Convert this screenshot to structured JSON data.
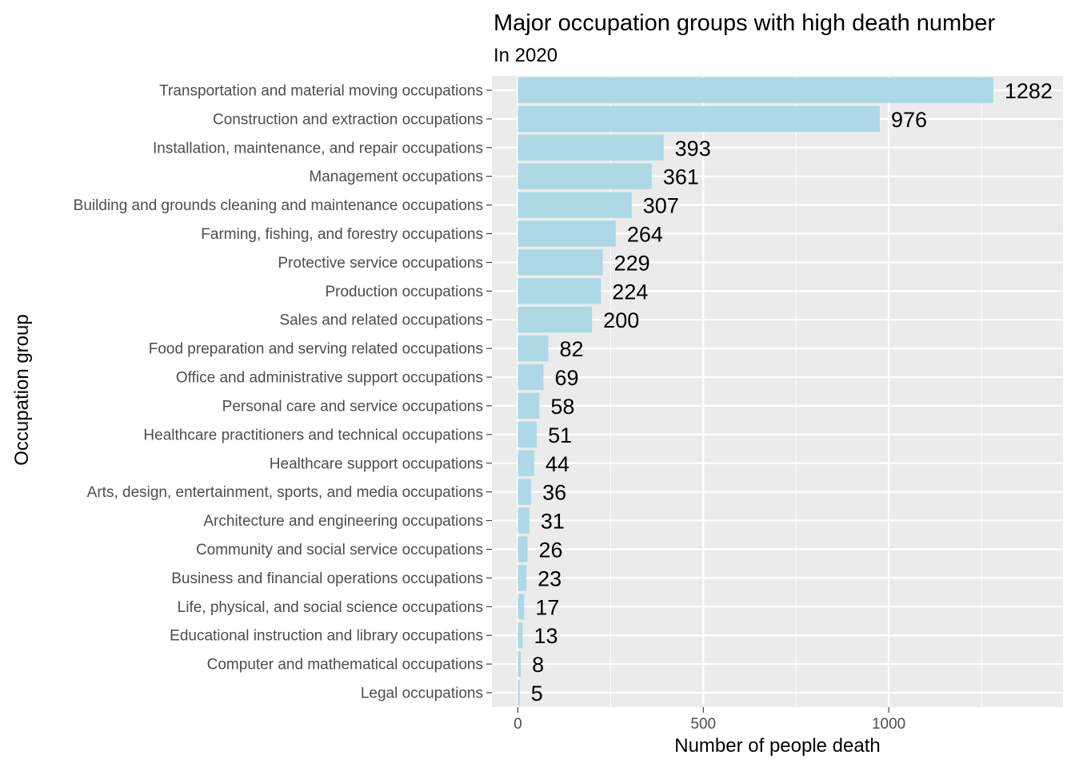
{
  "chart_data": {
    "type": "bar",
    "orientation": "horizontal",
    "title": "Major occupation groups with high death number",
    "subtitle": "In 2020",
    "xlabel": "Number of people death",
    "ylabel": "Occupation group",
    "xlim": [
      -70,
      1470
    ],
    "x_ticks": [
      0,
      500,
      1000
    ],
    "grid": true,
    "bar_color": "#add8e6",
    "panel_color": "#ebebeb",
    "categories": [
      "Transportation and material moving occupations",
      "Construction and extraction occupations",
      "Installation, maintenance, and repair occupations",
      "Management occupations",
      "Building and grounds cleaning and maintenance occupations",
      "Farming, fishing, and forestry occupations",
      "Protective service occupations",
      "Production occupations",
      "Sales and related occupations",
      "Food preparation and serving related occupations",
      "Office and administrative support occupations",
      "Personal care and service occupations",
      "Healthcare practitioners and technical occupations",
      "Healthcare support occupations",
      "Arts, design, entertainment, sports, and media occupations",
      "Architecture and engineering occupations",
      "Community and social service occupations",
      "Business and financial operations occupations",
      "Life, physical, and social science occupations",
      "Educational instruction and library occupations",
      "Computer and mathematical occupations",
      "Legal occupations"
    ],
    "values": [
      1282,
      976,
      393,
      361,
      307,
      264,
      229,
      224,
      200,
      82,
      69,
      58,
      51,
      44,
      36,
      31,
      26,
      23,
      17,
      13,
      8,
      5
    ]
  }
}
